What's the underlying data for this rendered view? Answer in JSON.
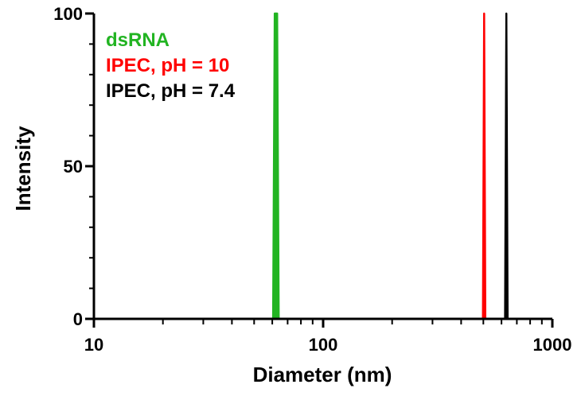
{
  "chart_data": {
    "type": "line",
    "xlabel": "Diameter (nm)",
    "ylabel": "Intensity",
    "xscale": "log",
    "xlim": [
      10,
      1000
    ],
    "ylim": [
      0,
      100
    ],
    "xticks": [
      "10",
      "100",
      "1000"
    ],
    "yticks": [
      "0",
      "50",
      "100"
    ],
    "grid": false,
    "legend_position": "top-left",
    "series": [
      {
        "name": "dsRNA",
        "color": "#22b422",
        "x": [
          60.5,
          61.5,
          62.0,
          63.0,
          64.0
        ],
        "y": [
          0,
          100,
          100,
          100,
          0
        ]
      },
      {
        "name": "IPEC, pH = 10",
        "color": "#ff0000",
        "x": [
          498,
          504,
          510
        ],
        "y": [
          0,
          100,
          0
        ]
      },
      {
        "name": "IPEC, pH = 7.4",
        "color": "#000000",
        "x": [
          622,
          630,
          638
        ],
        "y": [
          0,
          100,
          0
        ]
      }
    ]
  }
}
